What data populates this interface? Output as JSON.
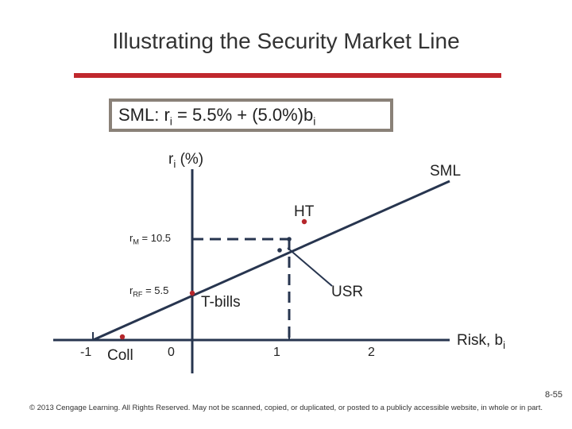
{
  "title": "Illustrating the Security Market Line",
  "formula": {
    "lhs_prefix": "SML:  r",
    "lhs_sub": "i",
    "rhs_mid": " = 5.5% + (5.0%)b",
    "rhs_sub": "i"
  },
  "labels": {
    "y_axis_main": "r",
    "y_axis_sub": "i",
    "y_axis_unit": " (%)",
    "sml": "SML",
    "ht": "HT",
    "rm_main": "r",
    "rm_sub": "M",
    "rm_value": " = 10.5",
    "rrf_main": "r",
    "rrf_sub": "RF",
    "rrf_value": " =   5.5",
    "tbills": "T-bills",
    "usr": "USR",
    "coll": "Coll",
    "risk_main": "Risk, b",
    "risk_sub": "i"
  },
  "x_ticks": [
    "-1",
    "0",
    "1",
    "2"
  ],
  "colors": {
    "line": "#27354f",
    "point": "#b5262b",
    "accent_rule": "#c0282d",
    "box_border": "#8a8178"
  },
  "footer": {
    "page": "8-55",
    "copyright": "© 2013 Cengage Learning. All Rights Reserved. May not be scanned, copied, or duplicated, or posted to a publicly accessible website, in whole or in part."
  }
}
